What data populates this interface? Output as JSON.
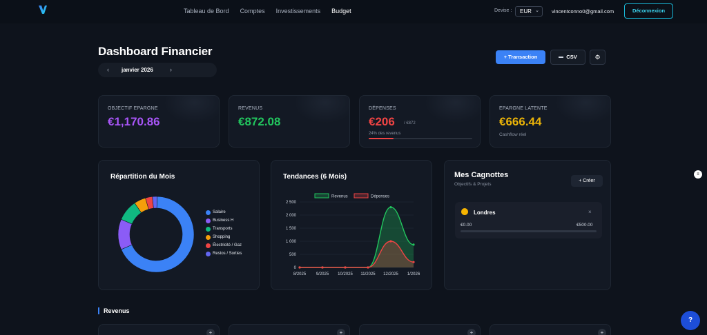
{
  "nav": {
    "links": [
      "Tableau de Bord",
      "Comptes",
      "Investissements",
      "Budget"
    ],
    "active": "Budget",
    "devise_label": "Devise :",
    "devise_value": "EUR",
    "user_email": "vincentconno0@gmail.com",
    "logout_label": "Déconnexion"
  },
  "header": {
    "title": "Dashboard Financier",
    "month": "janvier 2026",
    "prev": "‹",
    "next": "›",
    "add_transaction": "+ Transaction",
    "csv": "CSV",
    "settings_icon": "⚙"
  },
  "stats": [
    {
      "label": "OBJECTIF EPARGNE",
      "value": "€1,170.86",
      "color": "#a855f7"
    },
    {
      "label": "REVENUS",
      "value": "€872.08",
      "color": "#22c55e"
    },
    {
      "label": "DÉPENSES",
      "value": "€206",
      "suffix": "/ €872",
      "sub": "24% des revenus",
      "progress": 0.24,
      "color": "#ef4444"
    },
    {
      "label": "EPARGNE LATENTE",
      "value": "€666.44",
      "sub": "Cashflow réel",
      "color": "#eab308"
    }
  ],
  "repartition": {
    "title": "Répartition du Mois",
    "chart_data": {
      "type": "pie",
      "categories": [
        "Salaire",
        "Business H",
        "Transports",
        "Shopping",
        "Électricité / Gaz",
        "Restos / Sorties"
      ],
      "values": [
        68,
        13,
        9,
        5,
        3,
        2
      ],
      "colors": [
        "#3b82f6",
        "#8b5cf6",
        "#10b981",
        "#f59e0b",
        "#ef4444",
        "#6366f1"
      ],
      "donut": true
    }
  },
  "tendances": {
    "title": "Tendances (6 Mois)",
    "chart_data": {
      "type": "line",
      "categories": [
        "8/2025",
        "9/2025",
        "10/2025",
        "11/2025",
        "12/2025",
        "1/2026"
      ],
      "series": [
        {
          "name": "Revenus",
          "values": [
            0,
            0,
            0,
            0,
            2300,
            872
          ],
          "color": "#22c55e"
        },
        {
          "name": "Dépenses",
          "values": [
            0,
            0,
            0,
            0,
            1000,
            206
          ],
          "color": "#ef4444"
        }
      ],
      "yticks": [
        0,
        500,
        1000,
        1500,
        2000,
        2500
      ],
      "ytick_labels": [
        "0",
        "500",
        "1 000",
        "1 500",
        "2 000",
        "2 500"
      ],
      "ylim": [
        0,
        2500
      ],
      "legend": "top"
    }
  },
  "cagnottes": {
    "title": "Mes Cagnottes",
    "subtitle": "Objectifs & Projets",
    "create_label": "+ Créer",
    "items": [
      {
        "icon": "money-bag-icon",
        "name": "Londres",
        "current": "€0.00",
        "target": "€500.00",
        "progress": 0
      }
    ],
    "close": "×"
  },
  "revenus_section": {
    "title": "Revenus"
  },
  "help": "?"
}
